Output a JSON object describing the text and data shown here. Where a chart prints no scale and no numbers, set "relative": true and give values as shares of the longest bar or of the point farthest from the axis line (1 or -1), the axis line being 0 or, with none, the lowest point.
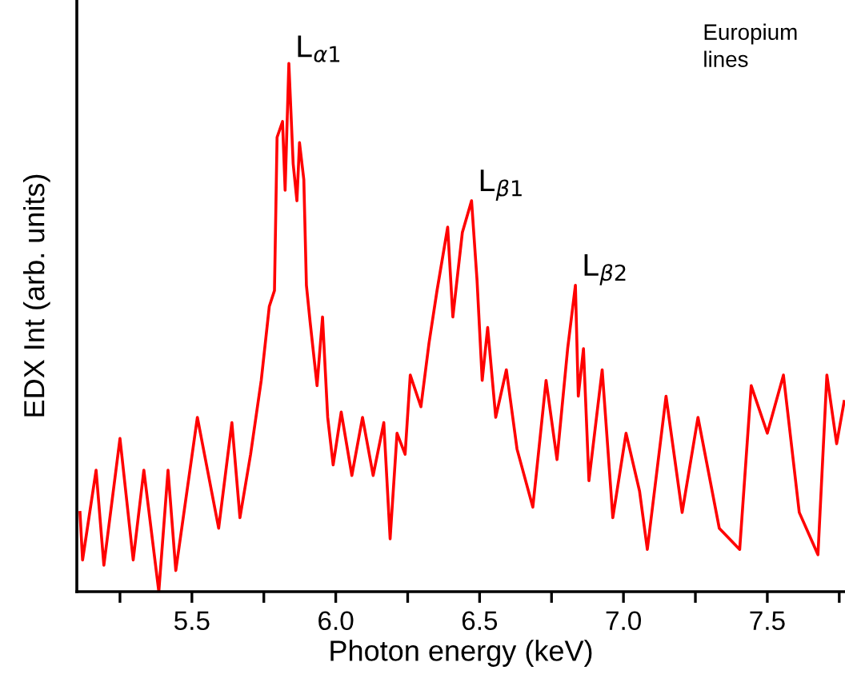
{
  "chart_data": {
    "type": "line",
    "relative": true,
    "xlabel": "Photon energy (keV)",
    "ylabel": "EDX Int (arb. units)",
    "xlim": [
      5.1,
      7.77
    ],
    "xticks": [
      {
        "value": 5.25,
        "label": null
      },
      5.5,
      {
        "value": 5.75,
        "label": null
      },
      {
        "value": 6,
        "label": "6.0"
      },
      {
        "value": 6.25,
        "label": null
      },
      6.5,
      {
        "value": 6.75,
        "label": null
      },
      {
        "value": 7,
        "label": "7.0"
      },
      {
        "value": 7.25,
        "label": null
      },
      7.5,
      {
        "value": 7.75,
        "label": null
      }
    ],
    "tick_labels": "x",
    "grid": false,
    "legend": false,
    "marker": "none",
    "line_style": "solid",
    "series": [
      {
        "color": "#ff0000",
        "x": [
          5.111,
          5.12,
          5.167,
          5.194,
          5.25,
          5.296,
          5.333,
          5.385,
          5.417,
          5.444,
          5.519,
          5.593,
          5.639,
          5.667,
          5.704,
          5.741,
          5.769,
          5.787,
          5.796,
          5.815,
          5.824,
          5.837,
          5.852,
          5.865,
          5.874,
          5.889,
          5.898,
          5.911,
          5.935,
          5.954,
          5.972,
          5.991,
          6.019,
          6.056,
          6.093,
          6.13,
          6.167,
          6.189,
          6.213,
          6.241,
          6.259,
          6.296,
          6.324,
          6.352,
          6.389,
          6.407,
          6.44,
          6.472,
          6.491,
          6.509,
          6.528,
          6.556,
          6.593,
          6.63,
          6.685,
          6.731,
          6.769,
          6.806,
          6.833,
          6.843,
          6.861,
          6.88,
          6.926,
          6.963,
          7.009,
          7.056,
          7.083,
          7.148,
          7.204,
          7.259,
          7.333,
          7.404,
          7.444,
          7.5,
          7.556,
          7.611,
          7.676,
          7.707,
          7.741,
          7.767
        ],
        "values": [
          0.15,
          0.06,
          0.23,
          0.05,
          0.29,
          0.06,
          0.23,
          0.0,
          0.23,
          0.04,
          0.33,
          0.12,
          0.32,
          0.14,
          0.26,
          0.4,
          0.54,
          0.57,
          0.86,
          0.89,
          0.76,
          1.0,
          0.81,
          0.74,
          0.85,
          0.78,
          0.58,
          0.51,
          0.39,
          0.52,
          0.33,
          0.24,
          0.34,
          0.22,
          0.33,
          0.22,
          0.32,
          0.1,
          0.3,
          0.26,
          0.41,
          0.35,
          0.47,
          0.57,
          0.69,
          0.52,
          0.68,
          0.74,
          0.59,
          0.4,
          0.5,
          0.33,
          0.42,
          0.27,
          0.16,
          0.4,
          0.25,
          0.46,
          0.58,
          0.37,
          0.46,
          0.21,
          0.42,
          0.14,
          0.3,
          0.19,
          0.08,
          0.37,
          0.15,
          0.33,
          0.12,
          0.08,
          0.39,
          0.3,
          0.41,
          0.15,
          0.07,
          0.41,
          0.28,
          0.36
        ]
      }
    ],
    "annotations": [
      {
        "text": "L$_{α1}$",
        "x": 5.837,
        "y": 1.0
      },
      {
        "text": "L$_{β1}$",
        "x": 6.472,
        "y": 0.74
      },
      {
        "text": "L$_{β2}$",
        "x": 6.833,
        "y": 0.58
      },
      "Europium\nlines"
    ]
  }
}
